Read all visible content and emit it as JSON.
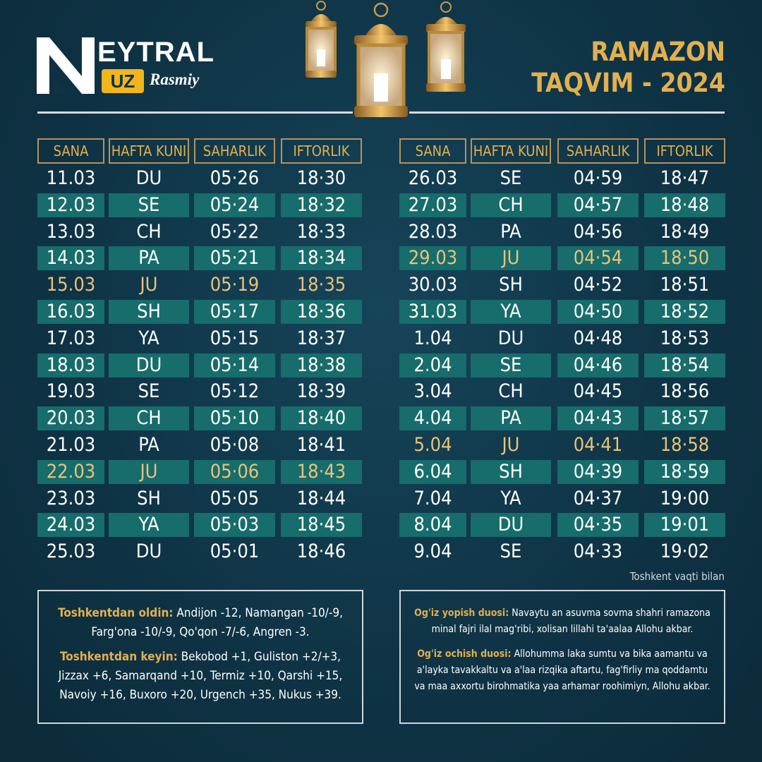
{
  "brand": {
    "word": "EYTRAL",
    "badge": "UZ",
    "tag": "Rasmiy"
  },
  "title": {
    "line1": "RAMAZON",
    "line2": "TAQVIM - 2024"
  },
  "headers": [
    "SANA",
    "HAFTA KUNI",
    "SAHARLIK",
    "IFTORLIK"
  ],
  "left_rows": [
    {
      "date": "11.03",
      "day": "DU",
      "sahar": "05·26",
      "iftor": "18·30"
    },
    {
      "date": "12.03",
      "day": "SE",
      "sahar": "05·24",
      "iftor": "18·32"
    },
    {
      "date": "13.03",
      "day": "CH",
      "sahar": "05·22",
      "iftor": "18·33"
    },
    {
      "date": "14.03",
      "day": "PA",
      "sahar": "05·21",
      "iftor": "18·34"
    },
    {
      "date": "15.03",
      "day": "JU",
      "sahar": "05·19",
      "iftor": "18·35"
    },
    {
      "date": "16.03",
      "day": "SH",
      "sahar": "05·17",
      "iftor": "18·36"
    },
    {
      "date": "17.03",
      "day": "YA",
      "sahar": "05·15",
      "iftor": "18·37"
    },
    {
      "date": "18.03",
      "day": "DU",
      "sahar": "05·14",
      "iftor": "18·38"
    },
    {
      "date": "19.03",
      "day": "SE",
      "sahar": "05·12",
      "iftor": "18·39"
    },
    {
      "date": "20.03",
      "day": "CH",
      "sahar": "05·10",
      "iftor": "18·40"
    },
    {
      "date": "21.03",
      "day": "PA",
      "sahar": "05·08",
      "iftor": "18·41"
    },
    {
      "date": "22.03",
      "day": "JU",
      "sahar": "05·06",
      "iftor": "18·43"
    },
    {
      "date": "23.03",
      "day": "SH",
      "sahar": "05·05",
      "iftor": "18·44"
    },
    {
      "date": "24.03",
      "day": "YA",
      "sahar": "05·03",
      "iftor": "18·45"
    },
    {
      "date": "25.03",
      "day": "DU",
      "sahar": "05·01",
      "iftor": "18·46"
    }
  ],
  "right_rows": [
    {
      "date": "26.03",
      "day": "SE",
      "sahar": "04·59",
      "iftor": "18·47"
    },
    {
      "date": "27.03",
      "day": "CH",
      "sahar": "04·57",
      "iftor": "18·48"
    },
    {
      "date": "28.03",
      "day": "PA",
      "sahar": "04·56",
      "iftor": "18·49"
    },
    {
      "date": "29.03",
      "day": "JU",
      "sahar": "04·54",
      "iftor": "18·50"
    },
    {
      "date": "30.03",
      "day": "SH",
      "sahar": "04·52",
      "iftor": "18·51"
    },
    {
      "date": "31.03",
      "day": "YA",
      "sahar": "04·50",
      "iftor": "18·52"
    },
    {
      "date": "1.04",
      "day": "DU",
      "sahar": "04·48",
      "iftor": "18·53"
    },
    {
      "date": "2.04",
      "day": "SE",
      "sahar": "04·46",
      "iftor": "18·54"
    },
    {
      "date": "3.04",
      "day": "CH",
      "sahar": "04·45",
      "iftor": "18·56"
    },
    {
      "date": "4.04",
      "day": "PA",
      "sahar": "04·43",
      "iftor": "18·57"
    },
    {
      "date": "5.04",
      "day": "JU",
      "sahar": "04·41",
      "iftor": "18·58"
    },
    {
      "date": "6.04",
      "day": "SH",
      "sahar": "04·39",
      "iftor": "18·59"
    },
    {
      "date": "7.04",
      "day": "YA",
      "sahar": "04·37",
      "iftor": "19·00"
    },
    {
      "date": "8.04",
      "day": "DU",
      "sahar": "04·35",
      "iftor": "19·01"
    },
    {
      "date": "9.04",
      "day": "SE",
      "sahar": "04·33",
      "iftor": "19·02"
    }
  ],
  "highlight_day": "JU",
  "note": "Toshkent vaqti bilan",
  "regions": {
    "before_label": "Toshkentdan oldin:",
    "before_text": "Andijon -12, Namangan -10/-9, Farg'ona -10/-9, Qo'qon -7/-6, Angren -3.",
    "after_label": "Toshkentdan keyin:",
    "after_text": "Bekobod +1, Guliston +2/+3, Jizzax +6, Samarqand +10, Termiz +10, Qarshi +15, Navoiy +16, Buxoro +20, Urgench +35, Nukus +39."
  },
  "duas": {
    "yopish_label": "Og'iz yopish duosi:",
    "yopish_text": "Navaytu an asuvma sovma shahri ramazona minal fajri ilal mag'ribi, xolisan lillahi ta'aalaa Allohu akbar.",
    "ochish_label": "Og'iz ochish duosi:",
    "ochish_text": "Allohumma laka sumtu va bika aamantu va a'layka tavakkaltu va a'laa rizqika aftartu, fag'firliy ma qoddamtu va maa axxortu birohmatika yaa arhamar roohimiyn, Allohu akbar."
  },
  "colors": {
    "background": "#0f3244",
    "stripe": "#176c6c",
    "gold": "#e2b04f",
    "badge": "#f2b51b"
  }
}
